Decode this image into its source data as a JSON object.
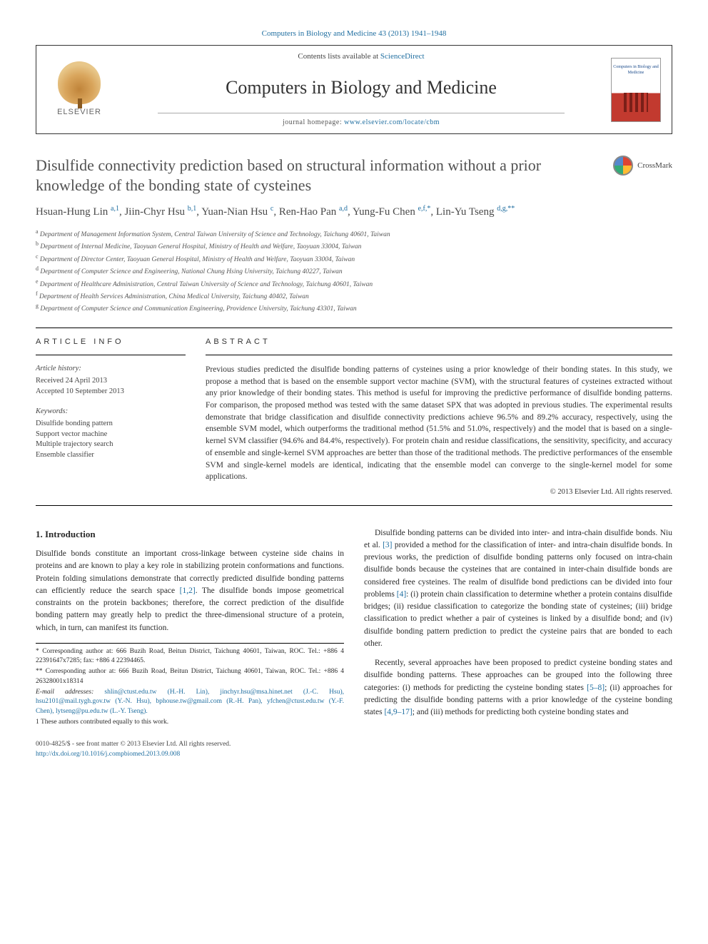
{
  "citation": "Computers in Biology and Medicine 43 (2013) 1941–1948",
  "header": {
    "contents_prefix": "Contents lists available at ",
    "contents_link": "ScienceDirect",
    "journal": "Computers in Biology and Medicine",
    "homepage_prefix": "journal homepage: ",
    "homepage_url": "www.elsevier.com/locate/cbm",
    "publisher": "ELSEVIER",
    "cover_text": "Computers in Biology and Medicine"
  },
  "crossmark": "CrossMark",
  "title": "Disulfide connectivity prediction based on structural information without a prior knowledge of the bonding state of cysteines",
  "authors_html": "Hsuan-Hung Lin <sup>a,1</sup>, Jiin-Chyr Hsu <sup>b,1</sup>, Yuan-Nian Hsu <sup>c</sup>, Ren-Hao Pan <sup>a,d</sup>, Yung-Fu Chen <sup>e,f,*</sup>, Lin-Yu Tseng <sup>d,g,**</sup>",
  "affiliations": [
    "a Department of Management Information System, Central Taiwan University of Science and Technology, Taichung 40601, Taiwan",
    "b Department of Internal Medicine, Taoyuan General Hospital, Ministry of Health and Welfare, Taoyuan 33004, Taiwan",
    "c Department of Director Center, Taoyuan General Hospital, Ministry of Health and Welfare, Taoyuan 33004, Taiwan",
    "d Department of Computer Science and Engineering, National Chung Hsing University, Taichung 40227, Taiwan",
    "e Department of Healthcare Administration, Central Taiwan University of Science and Technology, Taichung 40601, Taiwan",
    "f Department of Health Services Administration, China Medical University, Taichung 40402, Taiwan",
    "g Department of Computer Science and Communication Engineering, Providence University, Taichung 43301, Taiwan"
  ],
  "info": {
    "head": "ARTICLE INFO",
    "history_label": "Article history:",
    "received": "Received 24 April 2013",
    "accepted": "Accepted 10 September 2013",
    "keywords_label": "Keywords:",
    "keywords": [
      "Disulfide bonding pattern",
      "Support vector machine",
      "Multiple trajectory search",
      "Ensemble classifier"
    ]
  },
  "abstract": {
    "head": "ABSTRACT",
    "text": "Previous studies predicted the disulfide bonding patterns of cysteines using a prior knowledge of their bonding states. In this study, we propose a method that is based on the ensemble support vector machine (SVM), with the structural features of cysteines extracted without any prior knowledge of their bonding states. This method is useful for improving the predictive performance of disulfide bonding patterns. For comparison, the proposed method was tested with the same dataset SPX that was adopted in previous studies. The experimental results demonstrate that bridge classification and disulfide connectivity predictions achieve 96.5% and 89.2% accuracy, respectively, using the ensemble SVM model, which outperforms the traditional method (51.5% and 51.0%, respectively) and the model that is based on a single-kernel SVM classifier (94.6% and 84.4%, respectively). For protein chain and residue classifications, the sensitivity, specificity, and accuracy of ensemble and single-kernel SVM approaches are better than those of the traditional methods. The predictive performances of the ensemble SVM and single-kernel models are identical, indicating that the ensemble model can converge to the single-kernel model for some applications.",
    "copyright": "© 2013 Elsevier Ltd. All rights reserved."
  },
  "body": {
    "section_heading": "1.  Introduction",
    "p1a": "Disulfide bonds constitute an important cross-linkage between cysteine side chains in proteins and are known to play a key role in stabilizing protein conformations and functions. Protein folding simulations demonstrate that correctly predicted disulfide bonding patterns can efficiently reduce the search space ",
    "p1_ref": "[1,2]",
    "p1b": ". The disulfide bonds impose geometrical constraints on the protein backbones; therefore, the correct prediction of the disulfide bonding pattern may greatly help to predict the three-dimensional structure of a protein, which, in turn, can manifest its function.",
    "p2a": "Disulfide bonding patterns can be divided into inter- and intra-chain disulfide bonds. Niu et al. ",
    "p2_ref1": "[3]",
    "p2b": " provided a method for the classification of inter- and intra-chain disulfide bonds. In previous works, the prediction of disulfide bonding patterns only focused on intra-chain disulfide bonds because the cysteines that are contained in inter-chain disulfide bonds are considered free cysteines. The realm of disulfide bond predictions can be divided into four problems ",
    "p2_ref2": "[4]",
    "p2c": ": (i) protein chain classification to determine whether a protein contains disulfide bridges; (ii) residue classification to categorize the bonding state of cysteines; (iii) bridge classification to predict whether a pair of cysteines is linked by a disulfide bond; and (iv) disulfide bonding pattern prediction to predict the cysteine pairs that are bonded to each other.",
    "p3a": "Recently, several approaches have been proposed to predict cysteine bonding states and disulfide bonding patterns. These approaches can be grouped into the following three categories: (i) methods for predicting the cysteine bonding states ",
    "p3_ref1": "[5–8]",
    "p3b": "; (ii) approaches for predicting the disulfide bonding patterns with a prior knowledge of the cysteine bonding states ",
    "p3_ref2": "[4,9–17]",
    "p3c": "; and (iii) methods for predicting both cysteine bonding states and"
  },
  "footnotes": {
    "corr1": "* Corresponding author at: 666 Buzih Road, Beitun District, Taichung 40601, Taiwan, ROC. Tel.: +886 4 22391647x7285; fax: +886 4 22394465.",
    "corr2": "** Corresponding author at: 666 Buzih Road, Beitun District, Taichung 40601, Taiwan, ROC. Tel.: +886 4 26328001x18314",
    "emails_label": "E-mail addresses: ",
    "emails": "shlin@ctust.edu.tw (H.-H. Lin), jinchyr.hsu@msa.hinet.net (J.-C. Hsu), hsu2101@mail.tygh.gov.tw (Y.-N. Hsu), bphouse.tw@gmail.com (R.-H. Pan), yfchen@ctust.edu.tw (Y.-F. Chen), lytseng@pu.edu.tw (L.-Y. Tseng).",
    "equal": "1 These authors contributed equally to this work."
  },
  "bottom": {
    "line1": "0010-4825/$ - see front matter © 2013 Elsevier Ltd. All rights reserved.",
    "doi": "http://dx.doi.org/10.1016/j.compbiomed.2013.09.008"
  },
  "colors": {
    "link": "#1f6ea0",
    "text": "#2a2a2a",
    "rule": "#000000"
  }
}
